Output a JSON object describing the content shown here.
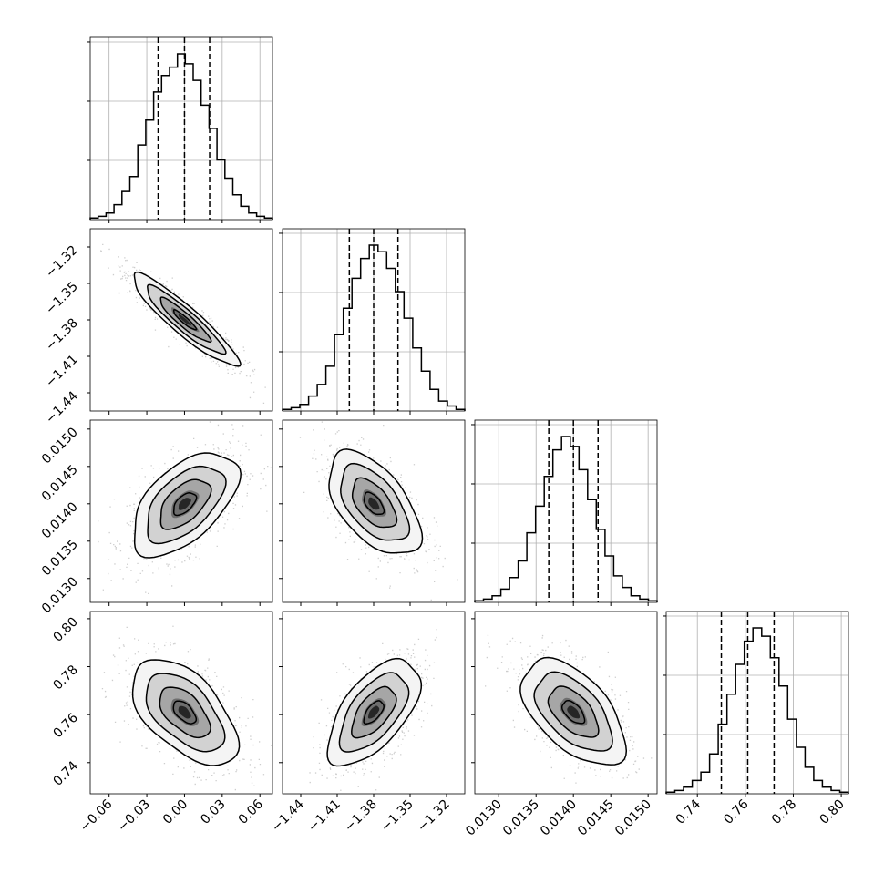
{
  "chart_data": {
    "type": "corner",
    "description_note": "",
    "grid": true,
    "parameters": [
      {
        "index": 0,
        "range": [
          -0.075,
          0.07
        ],
        "ticks": [
          -0.06,
          -0.03,
          0.0,
          0.03,
          0.06
        ],
        "tick_labels": [
          "−0.06",
          "−0.03",
          "0.00",
          "0.03",
          "0.06"
        ],
        "quantiles": [
          -0.021,
          0.0,
          0.02
        ],
        "hist_counts": [
          1,
          2,
          4,
          9,
          17,
          26,
          45,
          60,
          77,
          87,
          92,
          100,
          94,
          84,
          69,
          55,
          36,
          25,
          15,
          8,
          4,
          2,
          1
        ]
      },
      {
        "index": 1,
        "range": [
          -1.455,
          -1.305
        ],
        "ticks": [
          -1.44,
          -1.41,
          -1.38,
          -1.35,
          -1.32
        ],
        "tick_labels": [
          "−1.44",
          "−1.41",
          "−1.38",
          "−1.35",
          "−1.32"
        ],
        "quantiles": [
          -1.4,
          -1.38,
          -1.36
        ],
        "hist_counts": [
          1,
          2,
          4,
          9,
          16,
          27,
          46,
          62,
          80,
          92,
          100,
          96,
          86,
          72,
          56,
          38,
          24,
          13,
          6,
          3,
          1
        ]
      },
      {
        "index": 2,
        "range": [
          0.01268,
          0.01512
        ],
        "ticks": [
          0.013,
          0.0135,
          0.014,
          0.0145,
          0.015
        ],
        "tick_labels": [
          "0.0130",
          "0.0135",
          "0.0140",
          "0.0145",
          "0.0150"
        ],
        "quantiles": [
          0.01367,
          0.014,
          0.01433
        ],
        "hist_counts": [
          1,
          2,
          4,
          8,
          15,
          25,
          42,
          58,
          76,
          92,
          100,
          94,
          80,
          62,
          44,
          28,
          16,
          9,
          4,
          2,
          1
        ]
      },
      {
        "index": 3,
        "range": [
          0.727,
          0.803
        ],
        "ticks": [
          0.74,
          0.76,
          0.78,
          0.8
        ],
        "tick_labels": [
          "0.74",
          "0.76",
          "0.78",
          "0.80"
        ],
        "quantiles": [
          0.75,
          0.761,
          0.772
        ],
        "hist_counts": [
          1,
          2,
          4,
          8,
          13,
          24,
          42,
          60,
          78,
          92,
          100,
          95,
          82,
          65,
          45,
          28,
          16,
          8,
          4,
          2,
          1
        ]
      }
    ],
    "correlations": {
      "1_0": -0.92,
      "2_0": 0.55,
      "2_1": -0.55,
      "3_0": -0.55,
      "3_1": 0.6,
      "3_2": -0.55
    },
    "means": [
      0.0,
      -1.38,
      0.014,
      0.761
    ],
    "sigmas": [
      0.02,
      0.018,
      0.00033,
      0.0105
    ]
  }
}
